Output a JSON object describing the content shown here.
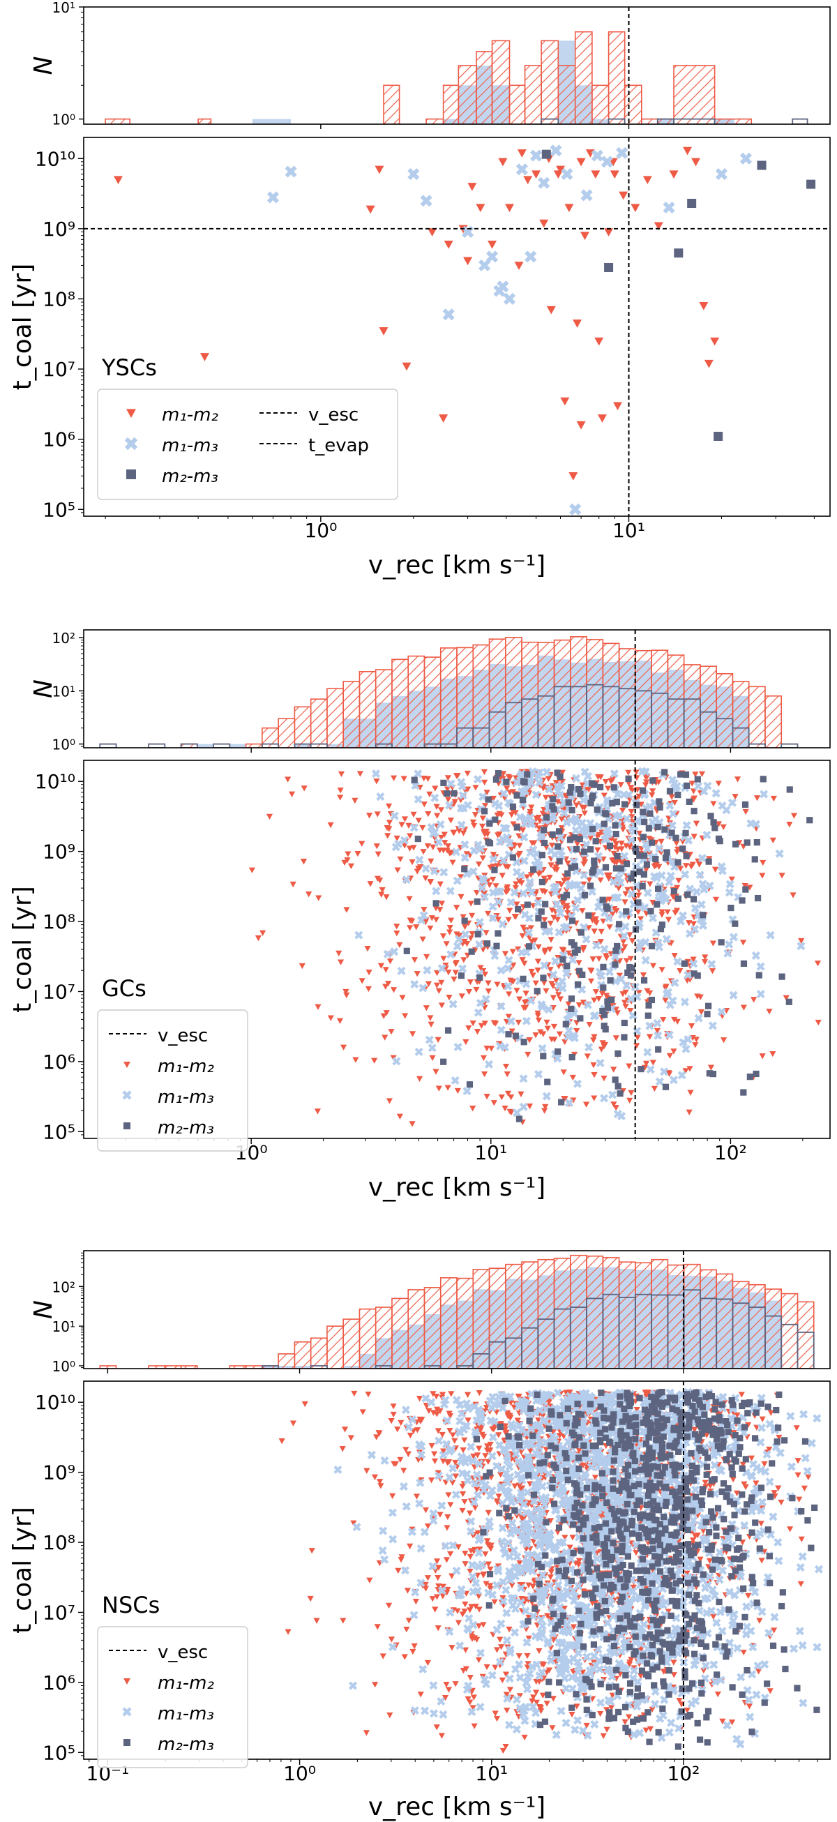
{
  "colors": {
    "m1m2": "#ee5a45",
    "m1m3": "#b4cdec",
    "m2m3": "#5d6480",
    "hist_fill": "#c3d6f0",
    "hatch": "#ee6a55",
    "ref_line": "#000000"
  },
  "markers": {
    "m1m2": "triangle-down",
    "m1m3": "x-cross",
    "m2m3": "square"
  },
  "chart_data": [
    {
      "id": "yscs",
      "type": "scatter",
      "environment": "YSCs",
      "hist_panel": {
        "ylabel": "N",
        "yscale": "log",
        "ylim": [
          0.9,
          10
        ],
        "yticks": [
          1,
          10
        ],
        "ytick_labels": [
          "10⁰",
          "10¹"
        ],
        "series": [
          {
            "name": "m1-m2",
            "style": "hatched-step",
            "bins": [
              {
                "x0": 0.2,
                "x1": 0.24,
                "n": 1
              },
              {
                "x0": 0.4,
                "x1": 0.44,
                "n": 1
              },
              {
                "x0": 1.6,
                "x1": 1.8,
                "n": 2
              },
              {
                "x0": 2.2,
                "x1": 2.5,
                "n": 1
              },
              {
                "x0": 2.5,
                "x1": 2.8,
                "n": 2
              },
              {
                "x0": 2.8,
                "x1": 3.2,
                "n": 3
              },
              {
                "x0": 3.2,
                "x1": 3.6,
                "n": 4
              },
              {
                "x0": 3.6,
                "x1": 4.1,
                "n": 5
              },
              {
                "x0": 4.1,
                "x1": 4.6,
                "n": 2
              },
              {
                "x0": 4.6,
                "x1": 5.2,
                "n": 3
              },
              {
                "x0": 5.2,
                "x1": 5.9,
                "n": 5
              },
              {
                "x0": 5.9,
                "x1": 6.7,
                "n": 3
              },
              {
                "x0": 6.7,
                "x1": 7.6,
                "n": 6
              },
              {
                "x0": 7.6,
                "x1": 8.6,
                "n": 2
              },
              {
                "x0": 8.6,
                "x1": 9.7,
                "n": 6
              },
              {
                "x0": 9.7,
                "x1": 11,
                "n": 2
              },
              {
                "x0": 11,
                "x1": 12.4,
                "n": 1
              },
              {
                "x0": 12.4,
                "x1": 14,
                "n": 1
              },
              {
                "x0": 14,
                "x1": 19,
                "n": 3
              },
              {
                "x0": 19,
                "x1": 25,
                "n": 1
              }
            ]
          },
          {
            "name": "m1-m3",
            "style": "filled",
            "bins": [
              {
                "x0": 0.6,
                "x1": 0.8,
                "n": 1
              },
              {
                "x0": 2.5,
                "x1": 2.8,
                "n": 1
              },
              {
                "x0": 2.8,
                "x1": 3.2,
                "n": 2
              },
              {
                "x0": 3.2,
                "x1": 3.6,
                "n": 3
              },
              {
                "x0": 3.6,
                "x1": 4.1,
                "n": 2
              },
              {
                "x0": 5.9,
                "x1": 6.7,
                "n": 5
              },
              {
                "x0": 6.7,
                "x1": 7.6,
                "n": 2
              },
              {
                "x0": 7.6,
                "x1": 8.6,
                "n": 1
              },
              {
                "x0": 12.4,
                "x1": 14,
                "n": 1
              },
              {
                "x0": 19,
                "x1": 22,
                "n": 1
              }
            ]
          },
          {
            "name": "m2-m3",
            "style": "step",
            "bins": [
              {
                "x0": 5.2,
                "x1": 5.9,
                "n": 1
              },
              {
                "x0": 8.6,
                "x1": 9.7,
                "n": 1
              },
              {
                "x0": 12.4,
                "x1": 14,
                "n": 1
              },
              {
                "x0": 14,
                "x1": 19,
                "n": 1
              },
              {
                "x0": 34,
                "x1": 38,
                "n": 1
              }
            ]
          }
        ]
      },
      "scatter_panel": {
        "xlabel": "v_rec [km s⁻¹]",
        "ylabel": "t_coal [yr]",
        "xscale": "log",
        "yscale": "log",
        "xlim": [
          0.17,
          45
        ],
        "ylim": [
          80000,
          20000000000
        ],
        "xticks": [
          1,
          10
        ],
        "xtick_labels": [
          "10⁰",
          "10¹"
        ],
        "yticks": [
          100000,
          1000000,
          10000000,
          100000000,
          1000000000,
          10000000000
        ],
        "ytick_labels": [
          "10⁵",
          "10⁶",
          "10⁷",
          "10⁸",
          "10⁹",
          "10¹⁰"
        ],
        "v_esc": 10,
        "t_evap": 1000000000,
        "legend": {
          "position": "lower-left",
          "title": "YSCs",
          "entries": [
            "m₁-m₂",
            "m₁-m₃",
            "m₂-m₃",
            "v_esc",
            "t_evap"
          ]
        },
        "series": [
          {
            "name": "m1-m2",
            "points": [
              [
                0.22,
                5000000000.0
              ],
              [
                0.42,
                15000000.0
              ],
              [
                1.45,
                1900000000.0
              ],
              [
                1.6,
                35000000.0
              ],
              [
                1.9,
                11000000.0
              ],
              [
                2.3,
                900000000.0
              ],
              [
                2.5,
                2000000.0
              ],
              [
                2.6,
                600000000.0
              ],
              [
                2.9,
                1000000000.0
              ],
              [
                3.1,
                4000000000.0
              ],
              [
                3.3,
                2000000000.0
              ],
              [
                3.6,
                600000000.0
              ],
              [
                3.9,
                9000000000.0
              ],
              [
                4.1,
                2000000000.0
              ],
              [
                4.4,
                300000000.0
              ],
              [
                4.7,
                5000000000.0
              ],
              [
                5.0,
                6000000000.0
              ],
              [
                5.3,
                1200000000.0
              ],
              [
                5.6,
                70000000.0
              ],
              [
                5.9,
                6000000000.0
              ],
              [
                6.2,
                3500000.0
              ],
              [
                6.4,
                2000000000.0
              ],
              [
                6.6,
                300000.0
              ],
              [
                6.8,
                45000000.0
              ],
              [
                7.0,
                1600000.0
              ],
              [
                7.2,
                800000000.0
              ],
              [
                7.5,
                12000000000.0
              ],
              [
                7.8,
                6000000000.0
              ],
              [
                8.2,
                2000000.0
              ],
              [
                8.6,
                900000000.0
              ],
              [
                8.9,
                9000000000.0
              ],
              [
                9.2,
                3000000.0
              ],
              [
                9.6,
                3000000000.0
              ],
              [
                10.5,
                2000000000.0
              ],
              [
                11.5,
                5000000000.0
              ],
              [
                12.5,
                1100000000.0
              ],
              [
                14.0,
                6000000000.0
              ],
              [
                15.5,
                13000000000.0
              ],
              [
                16.5,
                9000000000.0
              ],
              [
                17.5,
                80000000.0
              ],
              [
                18.2,
                12000000.0
              ],
              [
                19.0,
                25000000.0
              ],
              [
                1.55,
                7000000000.0
              ],
              [
                3.0,
                350000000.0
              ],
              [
                4.5,
                12000000000.0
              ],
              [
                6.0,
                7000000000.0
              ],
              [
                8.0,
                25000000.0
              ],
              [
                7.0,
                9000000000.0
              ],
              [
                5.5,
                10000000000.0
              ],
              [
                9.0,
                6000000000.0
              ]
            ]
          },
          {
            "name": "m1-m3",
            "points": [
              [
                0.7,
                2800000000.0
              ],
              [
                0.8,
                6500000000.0
              ],
              [
                2.0,
                6000000000.0
              ],
              [
                2.2,
                2500000000.0
              ],
              [
                2.6,
                60000000.0
              ],
              [
                3.0,
                900000000.0
              ],
              [
                3.4,
                300000000.0
              ],
              [
                3.6,
                400000000.0
              ],
              [
                3.9,
                150000000.0
              ],
              [
                4.1,
                100000000.0
              ],
              [
                4.5,
                7000000000.0
              ],
              [
                5.0,
                11000000000.0
              ],
              [
                5.3,
                4500000000.0
              ],
              [
                5.8,
                13000000000.0
              ],
              [
                6.3,
                6000000000.0
              ],
              [
                6.7,
                100000.0
              ],
              [
                7.3,
                3000000000.0
              ],
              [
                7.9,
                11000000000.0
              ],
              [
                8.5,
                9000000000.0
              ],
              [
                9.5,
                12000000000.0
              ],
              [
                13.5,
                2000000000.0
              ],
              [
                20.0,
                6000000000.0
              ],
              [
                24.0,
                10000000000.0
              ],
              [
                3.8,
                130000000.0
              ],
              [
                4.8,
                400000000.0
              ]
            ]
          },
          {
            "name": "m2-m3",
            "points": [
              [
                5.4,
                11500000000.0
              ],
              [
                8.6,
                280000000.0
              ],
              [
                14.5,
                450000000.0
              ],
              [
                16.0,
                2300000000.0
              ],
              [
                19.5,
                1100000.0
              ],
              [
                27.0,
                8000000000.0
              ],
              [
                39.0,
                4300000000.0
              ]
            ]
          }
        ]
      }
    },
    {
      "id": "gcs",
      "type": "scatter",
      "environment": "GCs",
      "hist_panel": {
        "ylabel": "N",
        "yscale": "log",
        "ylim": [
          0.85,
          140
        ],
        "yticks": [
          1,
          10,
          100
        ],
        "ytick_labels": [
          "10⁰",
          "10¹",
          "10²"
        ],
        "series": [
          {
            "name": "m1-m2",
            "style": "hatched-step",
            "shape": {
              "peak_v": 17,
              "peak_n": 95,
              "sigma": 0.42,
              "vmin": 0.45,
              "vmax": 150
            }
          },
          {
            "name": "m1-m3",
            "style": "filled",
            "shape": {
              "peak_v": 22,
              "peak_n": 42,
              "sigma": 0.38,
              "vmin": 0.65,
              "vmax": 105
            }
          },
          {
            "name": "m2-m3",
            "style": "step",
            "shape": {
              "peak_v": 30,
              "peak_n": 12,
              "sigma": 0.3,
              "vmin": 0.27,
              "vmax": 200
            }
          }
        ]
      },
      "scatter_panel": {
        "xlabel": "v_rec [km s⁻¹]",
        "ylabel": "t_coal [yr]",
        "xscale": "log",
        "yscale": "log",
        "xlim": [
          0.2,
          260
        ],
        "ylim": [
          80000,
          20000000000
        ],
        "xticks": [
          1,
          10,
          100
        ],
        "xtick_labels": [
          "10⁰",
          "10¹",
          "10²"
        ],
        "yticks": [
          100000,
          1000000,
          10000000,
          100000000,
          1000000000,
          10000000000
        ],
        "ytick_labels": [
          "10⁵",
          "10⁶",
          "10⁷",
          "10⁸",
          "10⁹",
          "10¹⁰"
        ],
        "v_esc": 40,
        "legend": {
          "position": "lower-left",
          "title": "GCs",
          "entries": [
            "v_esc",
            "m₁-m₂",
            "m₁-m₃",
            "m₂-m₃"
          ]
        },
        "series": [
          {
            "name": "m1-m2",
            "sampled": true,
            "count": 1100,
            "v_center": 18,
            "v_sigma": 0.42,
            "t_range": [
              100000,
              14000000000
            ]
          },
          {
            "name": "m1-m3",
            "sampled": true,
            "count": 500,
            "v_center": 24,
            "v_sigma": 0.38,
            "t_range": [
              100000,
              14000000000
            ]
          },
          {
            "name": "m2-m3",
            "sampled": true,
            "count": 260,
            "v_center": 30,
            "v_sigma": 0.32,
            "t_range": [
              100000,
              14000000000
            ]
          }
        ]
      }
    },
    {
      "id": "nscs",
      "type": "scatter",
      "environment": "NSCs",
      "hist_panel": {
        "ylabel": "N",
        "yscale": "log",
        "ylim": [
          0.85,
          800
        ],
        "yticks": [
          1,
          10,
          100
        ],
        "ytick_labels": [
          "10⁰",
          "10¹",
          "10²"
        ],
        "series": [
          {
            "name": "m1-m2",
            "style": "hatched-step",
            "shape": {
              "peak_v": 35,
              "peak_n": 520,
              "sigma": 0.48,
              "vmin": 0.1,
              "vmax": 400
            }
          },
          {
            "name": "m1-m3",
            "style": "filled",
            "shape": {
              "peak_v": 45,
              "peak_n": 300,
              "sigma": 0.42,
              "vmin": 0.6,
              "vmax": 300
            }
          },
          {
            "name": "m2-m3",
            "style": "step",
            "shape": {
              "peak_v": 80,
              "peak_n": 75,
              "sigma": 0.35,
              "vmin": 0.2,
              "vmax": 400
            }
          }
        ]
      },
      "scatter_panel": {
        "xlabel": "v_rec [km s⁻¹]",
        "ylabel": "t_coal [yr]",
        "xscale": "log",
        "yscale": "log",
        "xlim": [
          0.075,
          580
        ],
        "ylim": [
          80000,
          20000000000
        ],
        "xticks": [
          0.1,
          1,
          10,
          100
        ],
        "xtick_labels": [
          "10⁻¹",
          "10⁰",
          "10¹",
          "10²"
        ],
        "yticks": [
          100000,
          1000000,
          10000000,
          100000000,
          1000000000,
          10000000000
        ],
        "ytick_labels": [
          "10⁵",
          "10⁶",
          "10⁷",
          "10⁸",
          "10⁹",
          "10¹⁰"
        ],
        "v_esc": 100,
        "legend": {
          "position": "lower-left",
          "title": "NSCs",
          "entries": [
            "v_esc",
            "m₁-m₂",
            "m₁-m₃",
            "m₂-m₃"
          ]
        },
        "series": [
          {
            "name": "m1-m2",
            "sampled": true,
            "count": 1500,
            "v_center": 28,
            "v_sigma": 0.48,
            "t_range": [
              100000,
              14000000000
            ]
          },
          {
            "name": "m1-m3",
            "sampled": true,
            "count": 1800,
            "v_center": 40,
            "v_sigma": 0.42,
            "t_range": [
              100000,
              14000000000
            ]
          },
          {
            "name": "m2-m3",
            "sampled": true,
            "count": 900,
            "v_center": 70,
            "v_sigma": 0.32,
            "t_range": [
              100000,
              14000000000
            ]
          }
        ]
      }
    }
  ]
}
